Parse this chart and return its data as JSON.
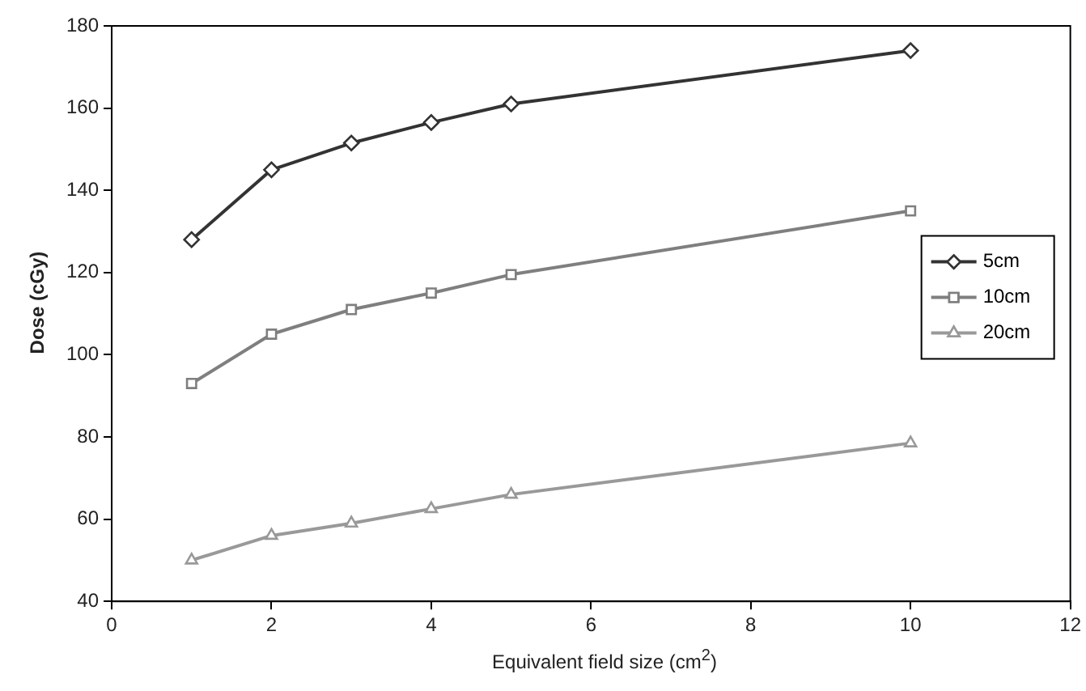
{
  "chart_data": {
    "type": "line",
    "xlabel": "Equivalent field size (cm$^{2}$)",
    "ylabel": "Dose (cGy)",
    "x": [
      1,
      2,
      3,
      4,
      5,
      10
    ],
    "series": [
      {
        "name": "5cm",
        "color": "#333333",
        "marker": "diamond",
        "values": [
          128,
          145,
          151.5,
          156.5,
          161,
          174
        ]
      },
      {
        "name": "10cm",
        "color": "#7f7f7f",
        "marker": "square",
        "values": [
          93,
          105,
          111,
          115,
          119.5,
          135
        ]
      },
      {
        "name": "20cm",
        "color": "#999999",
        "marker": "triangle",
        "values": [
          50,
          56,
          59,
          62.5,
          66,
          78.5
        ]
      }
    ],
    "xlim": [
      0,
      12
    ],
    "xticks": [
      0,
      2,
      4,
      6,
      8,
      10,
      12
    ],
    "ylim": [
      40,
      180
    ],
    "yticks": [
      40,
      60,
      80,
      100,
      120,
      140,
      160,
      180
    ],
    "grid": false,
    "legend": "right",
    "line_style": "solid"
  }
}
